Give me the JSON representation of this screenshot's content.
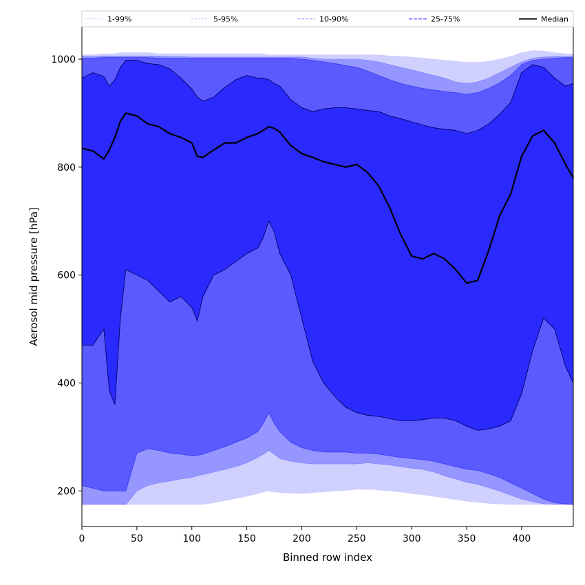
{
  "chart_data": {
    "type": "area",
    "xlabel": "Binned row index",
    "ylabel": "Aerosol mid pressure [hPa]",
    "xlim": [
      0,
      447
    ],
    "ylim": [
      134,
      1060
    ],
    "xticks": [
      0,
      50,
      100,
      150,
      200,
      250,
      300,
      350,
      400
    ],
    "yticks": [
      200,
      400,
      600,
      800,
      1000
    ],
    "grid": false,
    "legend_position": "top",
    "colors": {
      "band_1_99": "#d0d0ff",
      "band_5_95": "#9696ff",
      "band_10_90": "#5a5aff",
      "band_25_75": "#2a2aff",
      "median": "#000000"
    },
    "x": [
      0,
      10,
      20,
      25,
      30,
      35,
      40,
      50,
      60,
      70,
      80,
      90,
      100,
      105,
      110,
      120,
      130,
      140,
      150,
      160,
      165,
      170,
      175,
      180,
      190,
      200,
      210,
      220,
      230,
      240,
      250,
      260,
      270,
      280,
      290,
      300,
      310,
      320,
      330,
      340,
      350,
      360,
      370,
      380,
      390,
      400,
      410,
      420,
      430,
      440,
      447
    ],
    "series": [
      {
        "name": "1-99%",
        "lower": [
          175,
          175,
          175,
          175,
          175,
          175,
          175,
          175,
          175,
          175,
          175,
          175,
          175,
          175,
          175,
          178,
          182,
          186,
          190,
          195,
          198,
          200,
          198,
          197,
          196,
          195,
          197,
          198,
          200,
          201,
          203,
          203,
          202,
          200,
          198,
          195,
          193,
          190,
          187,
          184,
          181,
          179,
          177,
          176,
          175,
          175,
          175,
          175,
          175,
          175,
          175
        ],
        "upper": [
          1008,
          1008,
          1010,
          1010,
          1010,
          1012,
          1012,
          1012,
          1012,
          1010,
          1010,
          1010,
          1010,
          1010,
          1010,
          1010,
          1010,
          1010,
          1010,
          1010,
          1010,
          1008,
          1008,
          1008,
          1008,
          1008,
          1008,
          1008,
          1008,
          1008,
          1008,
          1008,
          1008,
          1006,
          1005,
          1004,
          1002,
          1000,
          998,
          996,
          994,
          994,
          996,
          1000,
          1005,
          1012,
          1016,
          1015,
          1012,
          1010,
          1010
        ]
      },
      {
        "name": "5-95%",
        "lower": [
          175,
          175,
          175,
          175,
          175,
          175,
          175,
          200,
          210,
          215,
          218,
          222,
          225,
          228,
          230,
          235,
          240,
          245,
          252,
          262,
          268,
          275,
          268,
          260,
          255,
          252,
          250,
          250,
          250,
          250,
          250,
          252,
          250,
          248,
          245,
          242,
          240,
          235,
          228,
          222,
          216,
          212,
          206,
          200,
          192,
          185,
          180,
          176,
          175,
          175,
          175
        ],
        "upper": [
          1005,
          1005,
          1006,
          1006,
          1006,
          1006,
          1006,
          1006,
          1006,
          1006,
          1005,
          1005,
          1004,
          1004,
          1004,
          1004,
          1004,
          1004,
          1004,
          1004,
          1004,
          1004,
          1004,
          1004,
          1004,
          1004,
          1002,
          1000,
          1000,
          1000,
          1000,
          998,
          995,
          990,
          985,
          980,
          975,
          970,
          965,
          958,
          955,
          958,
          965,
          975,
          985,
          995,
          1002,
          1004,
          1005,
          1005,
          1005
        ]
      },
      {
        "name": "10-90%",
        "lower": [
          210,
          205,
          200,
          200,
          200,
          200,
          200,
          270,
          278,
          275,
          270,
          268,
          265,
          266,
          268,
          275,
          282,
          290,
          298,
          310,
          325,
          345,
          325,
          310,
          290,
          280,
          275,
          272,
          272,
          272,
          270,
          270,
          268,
          265,
          262,
          260,
          258,
          255,
          250,
          245,
          240,
          238,
          232,
          225,
          215,
          205,
          195,
          185,
          178,
          176,
          175
        ],
        "upper": [
          1002,
          1002,
          1003,
          1003,
          1003,
          1003,
          1003,
          1003,
          1003,
          1002,
          1002,
          1002,
          1002,
          1002,
          1002,
          1002,
          1002,
          1002,
          1002,
          1002,
          1002,
          1002,
          1002,
          1002,
          1002,
          1000,
          998,
          995,
          992,
          988,
          985,
          978,
          970,
          962,
          955,
          950,
          946,
          943,
          940,
          938,
          935,
          938,
          946,
          956,
          970,
          990,
          998,
          1000,
          1002,
          1003,
          1003
        ]
      },
      {
        "name": "25-75%",
        "lower": [
          470,
          470,
          500,
          385,
          360,
          520,
          610,
          600,
          590,
          570,
          550,
          560,
          540,
          515,
          560,
          600,
          610,
          625,
          640,
          650,
          670,
          700,
          680,
          640,
          600,
          520,
          440,
          400,
          375,
          355,
          345,
          340,
          338,
          334,
          330,
          330,
          332,
          335,
          335,
          330,
          320,
          312,
          315,
          320,
          330,
          380,
          460,
          520,
          500,
          430,
          400
        ],
        "upper": [
          965,
          975,
          968,
          950,
          962,
          985,
          998,
          998,
          992,
          990,
          982,
          965,
          945,
          930,
          922,
          930,
          948,
          962,
          970,
          965,
          965,
          962,
          955,
          950,
          925,
          910,
          903,
          908,
          910,
          910,
          908,
          905,
          903,
          895,
          890,
          884,
          878,
          873,
          870,
          868,
          862,
          868,
          880,
          898,
          920,
          975,
          990,
          985,
          965,
          950,
          955
        ]
      },
      {
        "name": "Median",
        "values": [
          835,
          830,
          815,
          832,
          855,
          885,
          900,
          895,
          880,
          875,
          862,
          855,
          845,
          820,
          818,
          832,
          845,
          845,
          855,
          862,
          868,
          875,
          872,
          865,
          840,
          825,
          818,
          810,
          805,
          800,
          805,
          790,
          765,
          725,
          675,
          635,
          630,
          640,
          630,
          610,
          585,
          590,
          645,
          710,
          750,
          820,
          858,
          868,
          845,
          805,
          780
        ]
      }
    ]
  }
}
